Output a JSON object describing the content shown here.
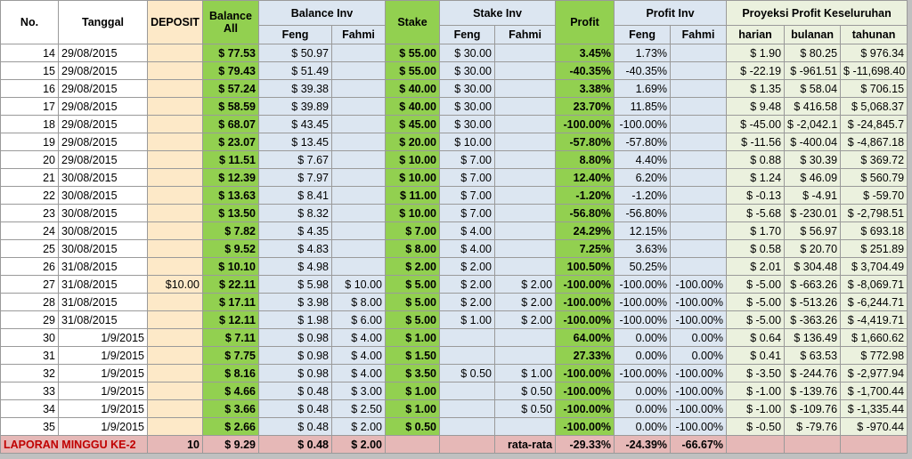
{
  "header": {
    "top": [
      "No.",
      "Tanggal",
      "DEPOSIT",
      "Balance All",
      "Balance Inv",
      "Stake",
      "Stake Inv",
      "Profit",
      "Profit Inv",
      "Proyeksi Profit Keseluruhan"
    ],
    "sub": [
      "Feng",
      "Fahmi",
      "Feng",
      "Fahmi",
      "Feng",
      "Fahmi",
      "harian",
      "bulanan",
      "tahunan"
    ]
  },
  "table": {
    "rows": [
      [
        "14",
        "29/08/2015",
        null,
        "$ 77.53",
        "$ 50.97",
        null,
        "$ 55.00",
        "$ 30.00",
        null,
        "3.45%",
        "1.73%",
        null,
        "$ 1.90",
        "$ 80.25",
        "$ 976.34"
      ],
      [
        "15",
        "29/08/2015",
        null,
        "$ 79.43",
        "$ 51.49",
        null,
        "$ 55.00",
        "$ 30.00",
        null,
        "-40.35%",
        "-40.35%",
        null,
        "$ -22.19",
        "$ -961.51",
        "$ -11,698.40"
      ],
      [
        "16",
        "29/08/2015",
        null,
        "$ 57.24",
        "$ 39.38",
        null,
        "$ 40.00",
        "$ 30.00",
        null,
        "3.38%",
        "1.69%",
        null,
        "$ 1.35",
        "$ 58.04",
        "$ 706.15"
      ],
      [
        "17",
        "29/08/2015",
        null,
        "$ 58.59",
        "$ 39.89",
        null,
        "$ 40.00",
        "$ 30.00",
        null,
        "23.70%",
        "11.85%",
        null,
        "$ 9.48",
        "$ 416.58",
        "$ 5,068.37"
      ],
      [
        "18",
        "29/08/2015",
        null,
        "$ 68.07",
        "$ 43.45",
        null,
        "$ 45.00",
        "$ 30.00",
        null,
        "-100.00%",
        "-100.00%",
        null,
        "$ -45.00",
        "$ -2,042.1",
        "$ -24,845.7"
      ],
      [
        "19",
        "29/08/2015",
        null,
        "$ 23.07",
        "$ 13.45",
        null,
        "$ 20.00",
        "$ 10.00",
        null,
        "-57.80%",
        "-57.80%",
        null,
        "$ -11.56",
        "$ -400.04",
        "$ -4,867.18"
      ],
      [
        "20",
        "29/08/2015",
        null,
        "$ 11.51",
        "$ 7.67",
        null,
        "$ 10.00",
        "$ 7.00",
        null,
        "8.80%",
        "4.40%",
        null,
        "$ 0.88",
        "$ 30.39",
        "$ 369.72"
      ],
      [
        "21",
        "30/08/2015",
        null,
        "$ 12.39",
        "$ 7.97",
        null,
        "$ 10.00",
        "$ 7.00",
        null,
        "12.40%",
        "6.20%",
        null,
        "$ 1.24",
        "$ 46.09",
        "$ 560.79"
      ],
      [
        "22",
        "30/08/2015",
        null,
        "$ 13.63",
        "$ 8.41",
        null,
        "$ 11.00",
        "$ 7.00",
        null,
        "-1.20%",
        "-1.20%",
        null,
        "$ -0.13",
        "$ -4.91",
        "$ -59.70"
      ],
      [
        "23",
        "30/08/2015",
        null,
        "$ 13.50",
        "$ 8.32",
        null,
        "$ 10.00",
        "$ 7.00",
        null,
        "-56.80%",
        "-56.80%",
        null,
        "$ -5.68",
        "$ -230.01",
        "$ -2,798.51"
      ],
      [
        "24",
        "30/08/2015",
        null,
        "$ 7.82",
        "$ 4.35",
        null,
        "$ 7.00",
        "$ 4.00",
        null,
        "24.29%",
        "12.15%",
        null,
        "$ 1.70",
        "$ 56.97",
        "$ 693.18"
      ],
      [
        "25",
        "30/08/2015",
        null,
        "$ 9.52",
        "$ 4.83",
        null,
        "$ 8.00",
        "$ 4.00",
        null,
        "7.25%",
        "3.63%",
        null,
        "$ 0.58",
        "$ 20.70",
        "$ 251.89"
      ],
      [
        "26",
        "31/08/2015",
        null,
        "$ 10.10",
        "$ 4.98",
        null,
        "$ 2.00",
        "$ 2.00",
        null,
        "100.50%",
        "50.25%",
        null,
        "$ 2.01",
        "$ 304.48",
        "$ 3,704.49"
      ],
      [
        "27",
        "31/08/2015",
        "$10.00",
        "$ 22.11",
        "$ 5.98",
        "$ 10.00",
        "$ 5.00",
        "$ 2.00",
        "$ 2.00",
        "-100.00%",
        "-100.00%",
        "-100.00%",
        "$ -5.00",
        "$ -663.26",
        "$ -8,069.71"
      ],
      [
        "28",
        "31/08/2015",
        null,
        "$ 17.11",
        "$ 3.98",
        "$ 8.00",
        "$ 5.00",
        "$ 2.00",
        "$ 2.00",
        "-100.00%",
        "-100.00%",
        "-100.00%",
        "$ -5.00",
        "$ -513.26",
        "$ -6,244.71"
      ],
      [
        "29",
        "31/08/2015",
        null,
        "$ 12.11",
        "$ 1.98",
        "$ 6.00",
        "$ 5.00",
        "$ 1.00",
        "$ 2.00",
        "-100.00%",
        "-100.00%",
        "-100.00%",
        "$ -5.00",
        "$ -363.26",
        "$ -4,419.71"
      ],
      [
        "30",
        "1/9/2015",
        null,
        "$ 7.11",
        "$ 0.98",
        "$ 4.00",
        "$ 1.00",
        null,
        null,
        "64.00%",
        "0.00%",
        "0.00%",
        "$ 0.64",
        "$ 136.49",
        "$ 1,660.62"
      ],
      [
        "31",
        "1/9/2015",
        null,
        "$ 7.75",
        "$ 0.98",
        "$ 4.00",
        "$ 1.50",
        null,
        null,
        "27.33%",
        "0.00%",
        "0.00%",
        "$ 0.41",
        "$ 63.53",
        "$ 772.98"
      ],
      [
        "32",
        "1/9/2015",
        null,
        "$ 8.16",
        "$ 0.98",
        "$ 4.00",
        "$ 3.50",
        "$ 0.50",
        "$ 1.00",
        "-100.00%",
        "-100.00%",
        "-100.00%",
        "$ -3.50",
        "$ -244.76",
        "$ -2,977.94"
      ],
      [
        "33",
        "1/9/2015",
        null,
        "$ 4.66",
        "$ 0.48",
        "$ 3.00",
        "$ 1.00",
        null,
        "$ 0.50",
        "-100.00%",
        "0.00%",
        "-100.00%",
        "$ -1.00",
        "$ -139.76",
        "$ -1,700.44"
      ],
      [
        "34",
        "1/9/2015",
        null,
        "$ 3.66",
        "$ 0.48",
        "$ 2.50",
        "$ 1.00",
        null,
        "$ 0.50",
        "-100.00%",
        "0.00%",
        "-100.00%",
        "$ -1.00",
        "$ -109.76",
        "$ -1,335.44"
      ],
      [
        "35",
        "1/9/2015",
        null,
        "$ 2.66",
        "$ 0.48",
        "$ 2.00",
        "$ 0.50",
        null,
        null,
        "-100.00%",
        "0.00%",
        "-100.00%",
        "$ -0.50",
        "$ -79.76",
        "$ -970.44"
      ]
    ],
    "footer": [
      "LAPORAN MINGGU KE-2",
      "10",
      "$ 9.29",
      "$ 0.48",
      "$ 2.00",
      null,
      null,
      "rata-rata",
      "-29.33%",
      "-24.39%",
      "-66.67%",
      null,
      null,
      null
    ]
  }
}
